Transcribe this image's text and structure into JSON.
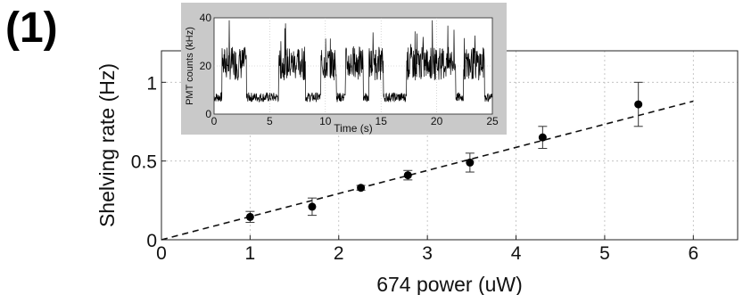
{
  "panel_label": "(1)",
  "chart_data": [
    {
      "id": "main",
      "type": "scatter",
      "title": "",
      "xlabel": "674 power (uW)",
      "ylabel": "Shelving rate (Hz)",
      "xlim": [
        0,
        6.5
      ],
      "ylim": [
        0,
        1.2
      ],
      "xticks": [
        0,
        1,
        2,
        3,
        4,
        5,
        6
      ],
      "yticks": [
        0,
        0.5,
        1
      ],
      "ytick_labels": [
        "0",
        "0.5",
        "1"
      ],
      "grid": true,
      "series": [
        {
          "style": "points-with-error-bars",
          "x": [
            1.0,
            1.7,
            2.25,
            2.78,
            3.48,
            4.3,
            5.38
          ],
          "y": [
            0.145,
            0.21,
            0.33,
            0.41,
            0.49,
            0.65,
            0.86
          ],
          "yerr": [
            0.035,
            0.055,
            0.015,
            0.03,
            0.06,
            0.07,
            0.14
          ]
        },
        {
          "style": "dashed-fit-line",
          "x": [
            0.0,
            6.0
          ],
          "y": [
            0.0,
            0.88
          ]
        }
      ]
    },
    {
      "id": "inset",
      "type": "line",
      "title": "",
      "xlabel": "Time (s)",
      "ylabel": "PMT counts (kHz)",
      "xlim": [
        0,
        25
      ],
      "ylim": [
        0,
        40
      ],
      "xticks": [
        0,
        5,
        10,
        15,
        20,
        25
      ],
      "yticks": [
        0,
        20,
        40
      ],
      "levels_khz": {
        "bright": 21,
        "dark": 7
      },
      "segments": [
        [
          0.0,
          0.7,
          7
        ],
        [
          0.7,
          2.9,
          21
        ],
        [
          2.9,
          5.8,
          7
        ],
        [
          5.8,
          8.2,
          21
        ],
        [
          8.2,
          9.6,
          7
        ],
        [
          9.6,
          11.0,
          21
        ],
        [
          11.0,
          11.8,
          7
        ],
        [
          11.8,
          13.4,
          21
        ],
        [
          13.4,
          13.9,
          7
        ],
        [
          13.9,
          15.2,
          21
        ],
        [
          15.2,
          17.3,
          7
        ],
        [
          17.3,
          21.7,
          21
        ],
        [
          21.7,
          22.4,
          7
        ],
        [
          22.4,
          24.3,
          21
        ],
        [
          24.3,
          25.0,
          7
        ]
      ],
      "background_color": "#c9c9c9"
    }
  ]
}
